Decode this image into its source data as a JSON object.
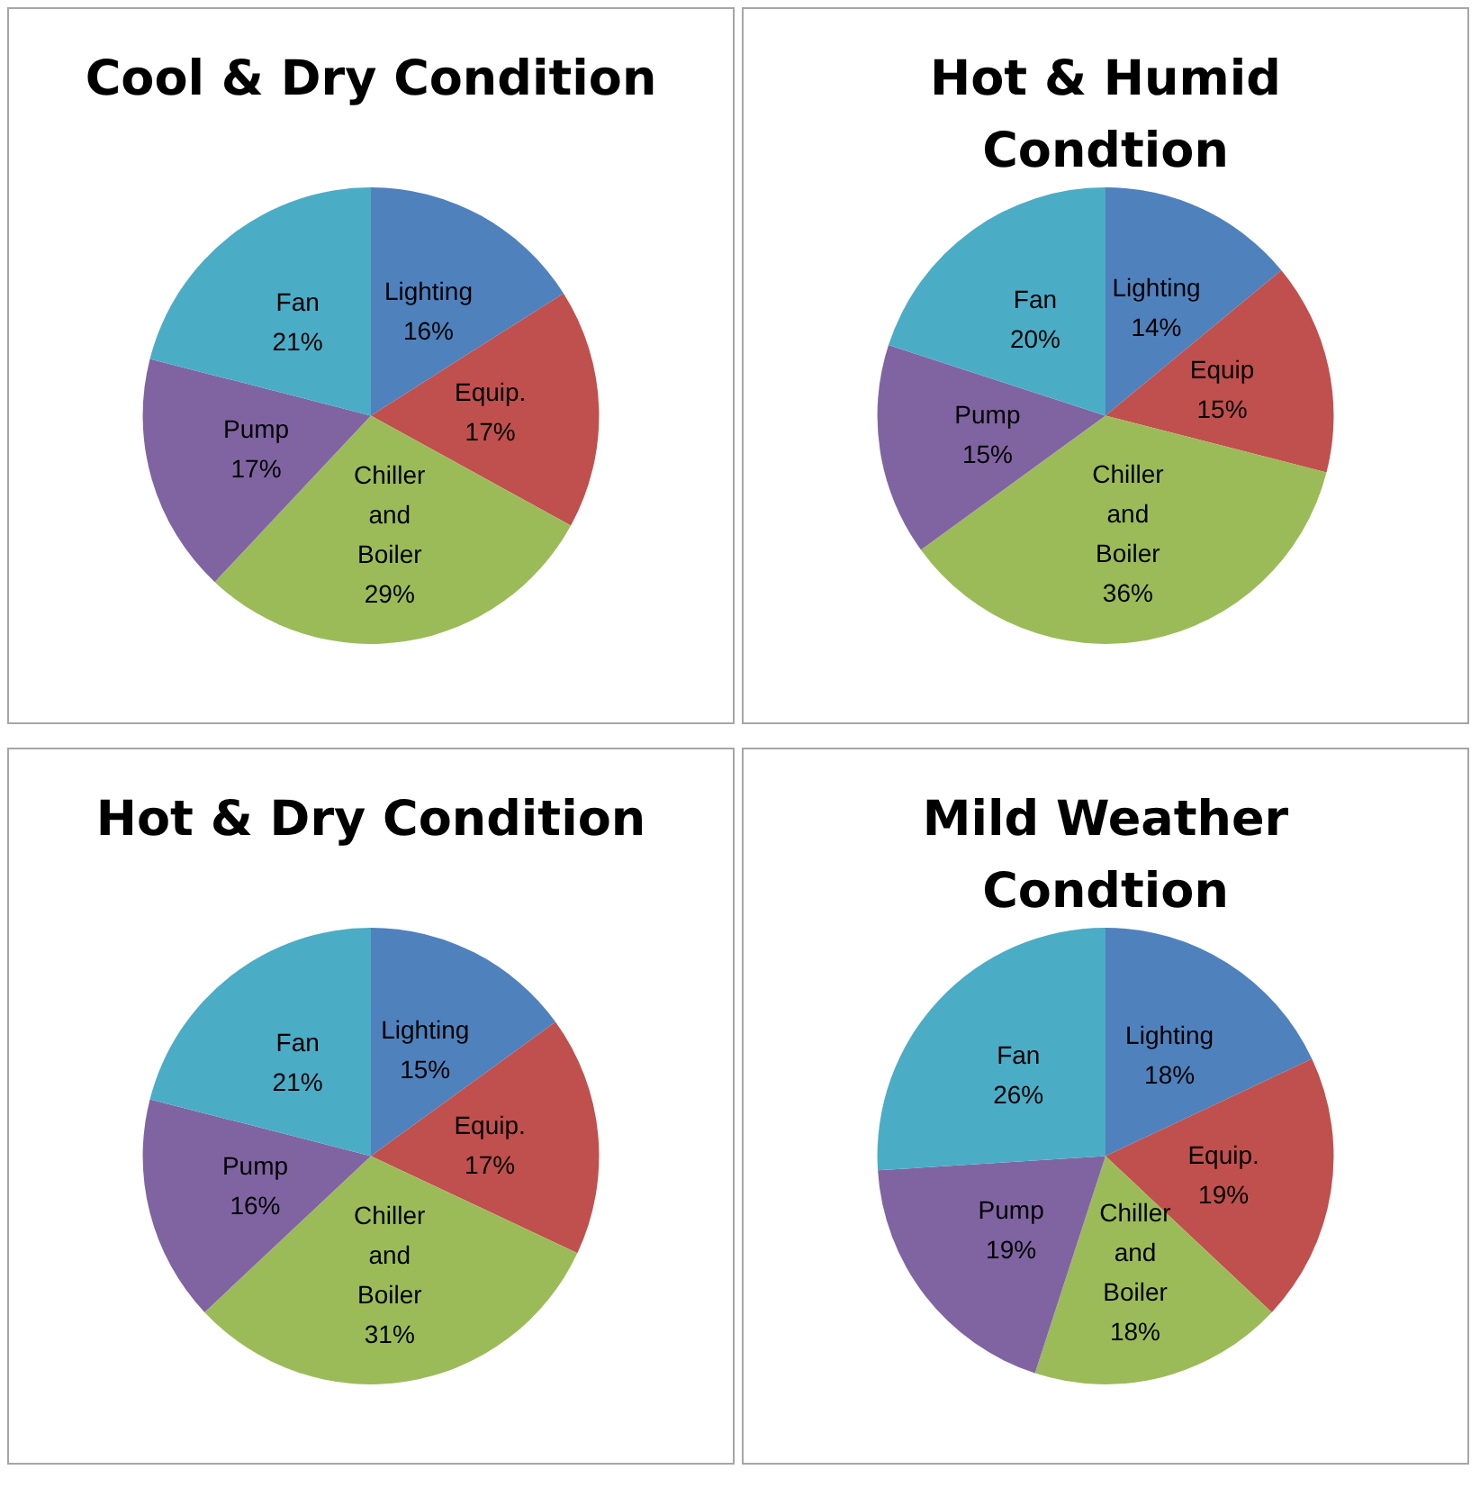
{
  "chart_data": [
    {
      "type": "pie",
      "title": "Cool & Dry Condition",
      "categories": [
        "Lighting",
        "Equip.",
        "Chiller and Boiler",
        "Pump",
        "Fan"
      ],
      "values": [
        16,
        17,
        29,
        17,
        21
      ],
      "value_labels": [
        "16%",
        "17%",
        "29%",
        "17%",
        "21%"
      ],
      "colors": [
        "#4f81bd",
        "#c0504d",
        "#9bbb59",
        "#8064a2",
        "#4bacc6"
      ],
      "legend": false
    },
    {
      "type": "pie",
      "title": "Hot & Humid\nCondtion",
      "categories": [
        "Lighting",
        "Equip",
        "Chiller and Boiler",
        "Pump",
        "Fan"
      ],
      "values": [
        14,
        15,
        36,
        15,
        20
      ],
      "value_labels": [
        "14%",
        "15%",
        "36%",
        "15%",
        "20%"
      ],
      "colors": [
        "#4f81bd",
        "#c0504d",
        "#9bbb59",
        "#8064a2",
        "#4bacc6"
      ],
      "legend": false
    },
    {
      "type": "pie",
      "title": "Hot & Dry Condition",
      "categories": [
        "Lighting",
        "Equip.",
        "Chiller and Boiler",
        "Pump",
        "Fan"
      ],
      "values": [
        15,
        17,
        31,
        16,
        21
      ],
      "value_labels": [
        "15%",
        "17%",
        "31%",
        "16%",
        "21%"
      ],
      "colors": [
        "#4f81bd",
        "#c0504d",
        "#9bbb59",
        "#8064a2",
        "#4bacc6"
      ],
      "legend": false
    },
    {
      "type": "pie",
      "title": "Mild Weather\nCondtion",
      "categories": [
        "Lighting",
        "Equip.",
        "Chiller and Boiler",
        "Pump",
        "Fan"
      ],
      "values": [
        18,
        19,
        18,
        19,
        26
      ],
      "value_labels": [
        "18%",
        "19%",
        "18%",
        "19%",
        "26%"
      ],
      "colors": [
        "#4f81bd",
        "#c0504d",
        "#9bbb59",
        "#8064a2",
        "#4bacc6"
      ],
      "legend": false
    }
  ]
}
